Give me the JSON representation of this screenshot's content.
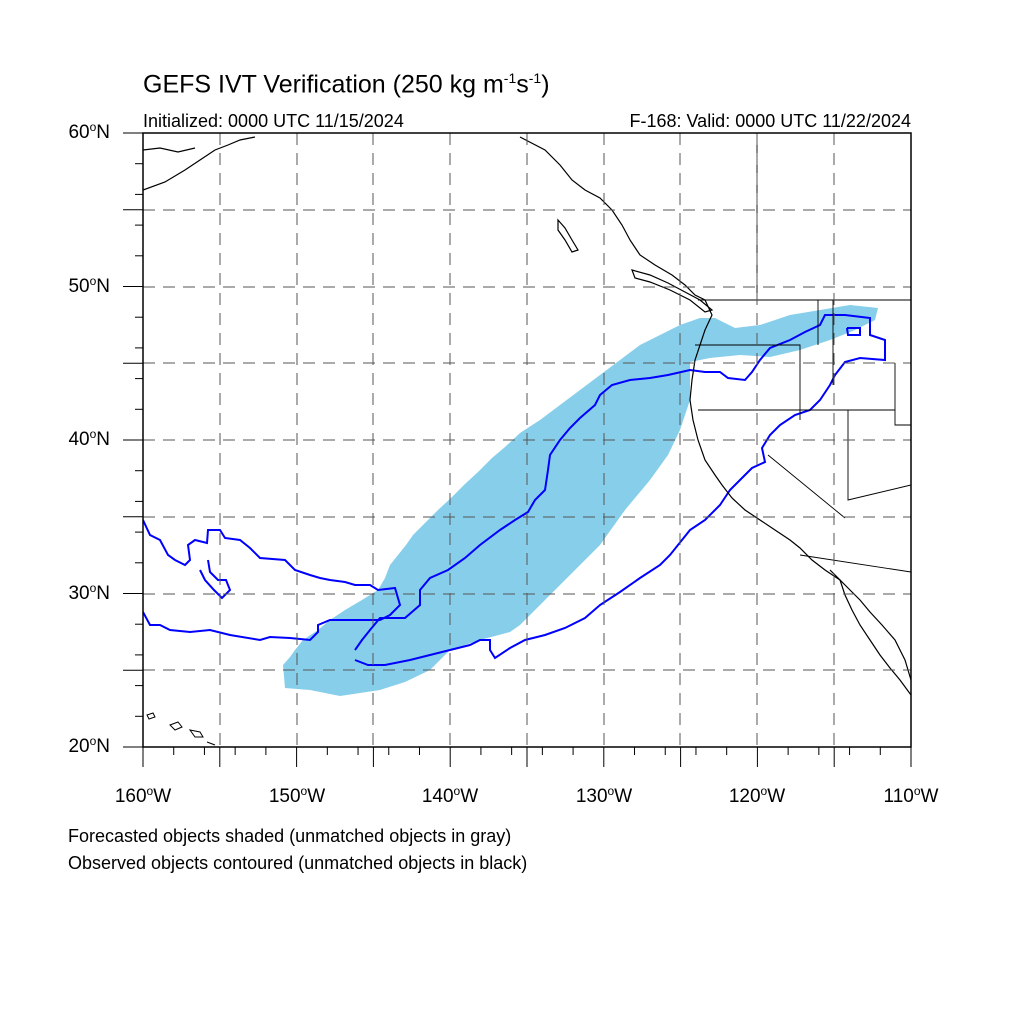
{
  "header": {
    "title_prefix": "GEFS IVT Verification (250 kg m",
    "title_exp1": "-1",
    "title_mid": "s",
    "title_exp2": "-1",
    "title_suffix": ")",
    "initialized": "Initialized: 0000 UTC 11/15/2024",
    "valid": "F-168: Valid: 0000 UTC 11/22/2024"
  },
  "axes": {
    "lat_labels": [
      {
        "deg": "60",
        "hem": "N"
      },
      {
        "deg": "50",
        "hem": "N"
      },
      {
        "deg": "40",
        "hem": "N"
      },
      {
        "deg": "30",
        "hem": "N"
      },
      {
        "deg": "20",
        "hem": "N"
      }
    ],
    "lon_labels": [
      {
        "deg": "160",
        "hem": "W"
      },
      {
        "deg": "150",
        "hem": "W"
      },
      {
        "deg": "140",
        "hem": "W"
      },
      {
        "deg": "130",
        "hem": "W"
      },
      {
        "deg": "120",
        "hem": "W"
      },
      {
        "deg": "110",
        "hem": "W"
      }
    ],
    "lat_range": [
      20,
      60
    ],
    "lon_range": [
      -160,
      -110
    ]
  },
  "legend": {
    "line1": "Forecasted objects shaded (unmatched objects in gray)",
    "line2": "Observed objects contoured (unmatched objects in black)"
  },
  "colors": {
    "forecast_fill": "#87ceeb",
    "observed_contour": "#0000ff",
    "coastline": "#000000",
    "grid": "#555555"
  }
}
